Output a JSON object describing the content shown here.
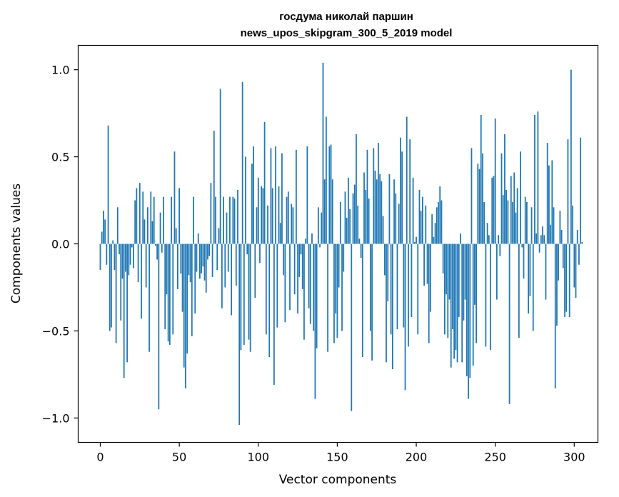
{
  "chart_data": {
    "type": "bar",
    "title_line1": "госдума николай паршин",
    "title_line2": "news_upos_skipgram_300_5_2019 model",
    "xlabel": "Vector components",
    "ylabel": "Components values",
    "xlim": [
      -14,
      315
    ],
    "ylim": [
      -1.14,
      1.14
    ],
    "xticks": [
      0,
      50,
      100,
      150,
      200,
      250,
      300
    ],
    "yticks": [
      -1.0,
      -0.5,
      0.0,
      0.5,
      1.0
    ],
    "ytick_labels": [
      "−1.0",
      "−0.5",
      "0.0",
      "0.5",
      "1.0"
    ],
    "grid": false,
    "bar_color": "#1f77b4",
    "values": [
      -0.15,
      0.07,
      0.19,
      0.14,
      -0.12,
      0.68,
      -0.5,
      -0.48,
      0.02,
      -0.15,
      -0.57,
      0.21,
      -0.06,
      -0.44,
      -0.2,
      -0.77,
      -0.16,
      -0.68,
      -0.18,
      -0.12,
      -0.02,
      -0.14,
      0.25,
      0.32,
      -0.22,
      0.35,
      -0.43,
      0.3,
      0.14,
      -0.25,
      0.21,
      -0.62,
      0.3,
      0.13,
      0.27,
      -0.01,
      -0.09,
      -0.95,
      0.18,
      -0.05,
      0.27,
      -0.49,
      -0.29,
      -0.56,
      -0.58,
      0.27,
      -0.52,
      0.53,
      0.09,
      -0.26,
      0.32,
      -0.17,
      -0.39,
      -0.71,
      -0.83,
      -0.63,
      -0.18,
      -0.22,
      -0.53,
      0.27,
      -0.4,
      -0.16,
      0.06,
      -0.2,
      -0.17,
      -0.13,
      -0.21,
      -0.28,
      -0.09,
      -0.07,
      0.35,
      -0.19,
      0.65,
      0.27,
      -0.15,
      0.09,
      0.89,
      -0.37,
      0.27,
      -0.25,
      0.18,
      -0.16,
      0.27,
      -0.41,
      0.27,
      0.26,
      -0.24,
      0.31,
      -1.04,
      -0.61,
      0.93,
      -0.58,
      0.5,
      -0.06,
      -0.55,
      -0.62,
      0.46,
      0.56,
      -0.31,
      0.21,
      0.38,
      -0.11,
      0.33,
      0.32,
      0.7,
      -0.52,
      0.22,
      -0.65,
      0.55,
      0.32,
      -0.81,
      0.56,
      -0.48,
      0.33,
      0.12,
      0.52,
      -0.18,
      -0.45,
      0.27,
      0.3,
      -0.38,
      0.23,
      0.21,
      -0.29,
      0.54,
      -0.4,
      -0.19,
      -0.06,
      -0.26,
      -0.55,
      0.03,
      0.56,
      -0.37,
      -0.46,
      0.06,
      -0.5,
      -0.89,
      -0.6,
      0.21,
      -0.02,
      0.18,
      1.04,
      0.37,
      0.73,
      -0.62,
      0.56,
      0.57,
      0.37,
      -0.57,
      -0.4,
      -0.54,
      -0.25,
      0.24,
      -0.5,
      -0.16,
      0.3,
      0.15,
      0.38,
      0.2,
      -0.96,
      0.29,
      0.34,
      0.63,
      0.22,
      0.03,
      -0.08,
      -0.65,
      0.41,
      0.31,
      0.54,
      0.26,
      -0.5,
      -0.67,
      0.55,
      0.42,
      0.37,
      0.58,
      0.4,
      0.36,
      0.16,
      -0.18,
      -0.68,
      -0.33,
      0.4,
      -0.52,
      -0.72,
      0.37,
      0.29,
      -0.49,
      0.23,
      0.61,
      0.53,
      -0.48,
      -0.84,
      0.73,
      -0.59,
      0.6,
      -0.42,
      0.38,
      0.01,
      0.04,
      -0.52,
      0.31,
      0.19,
      0.27,
      -0.24,
      0.22,
      -0.23,
      -0.57,
      -0.39,
      0.17,
      0.04,
      0.12,
      0.21,
      0.24,
      0.33,
      0.25,
      -0.17,
      -0.52,
      -0.29,
      -0.54,
      -0.32,
      -0.71,
      -0.49,
      -0.66,
      -0.61,
      -0.68,
      -0.42,
      0.06,
      -0.68,
      -0.44,
      -0.32,
      -0.76,
      -0.89,
      -0.77,
      0.55,
      -0.7,
      -0.35,
      -0.57,
      0.46,
      0.43,
      0.74,
      0.52,
      0.24,
      -0.59,
      0.12,
      0.05,
      -0.61,
      0.38,
      0.39,
      0.72,
      -0.32,
      0.05,
      -0.07,
      0.52,
      0.28,
      0.63,
      0.31,
      0.25,
      -0.92,
      0.39,
      0.24,
      0.41,
      0.18,
      0.32,
      -0.54,
      0.53,
      -0.02,
      -0.2,
      0.27,
      0.24,
      -0.4,
      -0.3,
      0.21,
      -0.5,
      0.74,
      0.06,
      0.76,
      -0.05,
      0.05,
      0.1,
      0.05,
      -0.32,
      0.58,
      0.45,
      0.11,
      0.48,
      0.21,
      -0.83,
      -0.47,
      -0.21,
      0.19,
      0.08,
      -0.14,
      -0.42,
      -0.39,
      0.6,
      -0.42,
      1.0,
      0.22,
      -0.25,
      -0.31,
      0.08,
      -0.12,
      0.61,
      0.01
    ]
  }
}
